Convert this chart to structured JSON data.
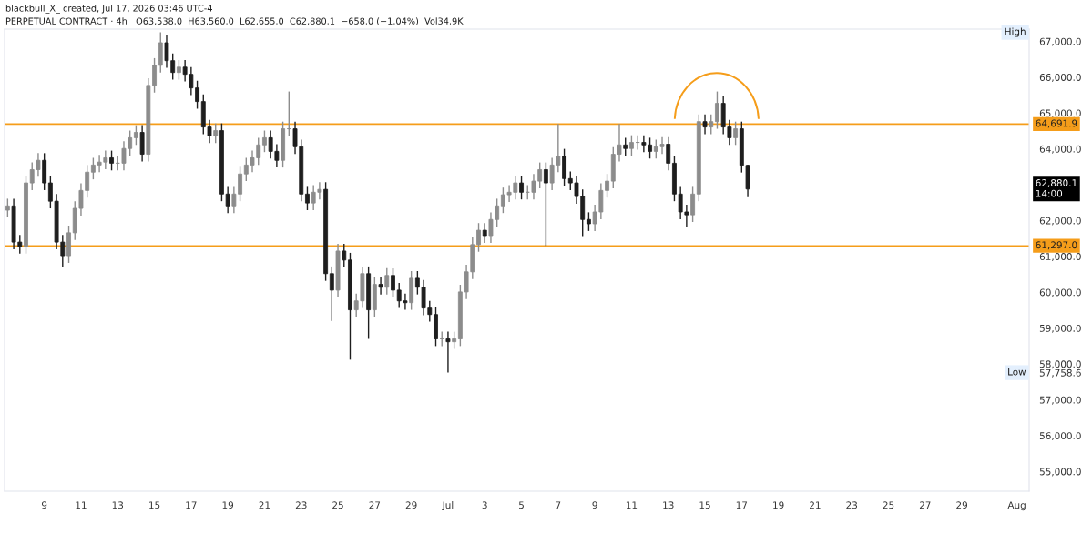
{
  "chart_data": {
    "type": "candlestick",
    "title": "blackbull_X_ created, Jul 17, 2026 03:46 UTC-4",
    "subtitle": "PERPETUAL CONTRACT · 4h   O63,538.0  H63,560.0  L62,655.0  C62,880.1  −658.0 (−1.04%)  Vol34.9K",
    "x": [
      "2026-06-07T00:00",
      "2026-06-07T08:00",
      "2026-06-07T16:00",
      "2026-06-08T00:00",
      "2026-06-08T08:00",
      "2026-06-08T16:00",
      "2026-06-09T00:00",
      "2026-06-09T08:00",
      "2026-06-09T16:00",
      "2026-06-10T00:00",
      "2026-06-10T08:00",
      "2026-06-10T16:00",
      "2026-06-11T00:00",
      "2026-06-11T08:00",
      "2026-06-11T16:00",
      "2026-06-12T00:00",
      "2026-06-12T08:00",
      "2026-06-12T16:00",
      "2026-06-13T00:00",
      "2026-06-13T08:00",
      "2026-06-13T16:00",
      "2026-06-14T00:00",
      "2026-06-14T08:00",
      "2026-06-14T16:00",
      "2026-06-15T00:00",
      "2026-06-15T08:00",
      "2026-06-15T16:00",
      "2026-06-16T00:00",
      "2026-06-16T08:00",
      "2026-06-16T16:00",
      "2026-06-17T00:00",
      "2026-06-17T08:00",
      "2026-06-17T16:00",
      "2026-06-18T00:00",
      "2026-06-18T08:00",
      "2026-06-18T16:00",
      "2026-06-19T00:00",
      "2026-06-19T08:00",
      "2026-06-19T16:00",
      "2026-06-20T00:00",
      "2026-06-20T08:00",
      "2026-06-20T16:00",
      "2026-06-21T00:00",
      "2026-06-21T08:00",
      "2026-06-21T16:00",
      "2026-06-22T00:00",
      "2026-06-22T08:00",
      "2026-06-22T16:00",
      "2026-06-23T00:00",
      "2026-06-23T08:00",
      "2026-06-23T16:00",
      "2026-06-24T00:00",
      "2026-06-24T08:00",
      "2026-06-24T16:00",
      "2026-06-25T00:00",
      "2026-06-25T08:00",
      "2026-06-25T16:00",
      "2026-06-26T00:00",
      "2026-06-26T08:00",
      "2026-06-26T16:00",
      "2026-06-27T00:00",
      "2026-06-27T08:00",
      "2026-06-27T16:00",
      "2026-06-28T00:00",
      "2026-06-28T08:00",
      "2026-06-28T16:00",
      "2026-06-29T00:00",
      "2026-06-29T08:00",
      "2026-06-29T16:00",
      "2026-06-30T00:00",
      "2026-06-30T08:00",
      "2026-06-30T16:00",
      "2026-07-01T00:00",
      "2026-07-01T08:00",
      "2026-07-01T16:00",
      "2026-07-02T00:00",
      "2026-07-02T08:00",
      "2026-07-02T16:00",
      "2026-07-03T00:00",
      "2026-07-03T08:00",
      "2026-07-03T16:00",
      "2026-07-04T00:00",
      "2026-07-04T08:00",
      "2026-07-04T16:00",
      "2026-07-05T00:00",
      "2026-07-05T08:00",
      "2026-07-05T16:00",
      "2026-07-06T00:00",
      "2026-07-06T08:00",
      "2026-07-06T16:00",
      "2026-07-07T00:00",
      "2026-07-07T08:00",
      "2026-07-07T16:00",
      "2026-07-08T00:00",
      "2026-07-08T08:00",
      "2026-07-08T16:00",
      "2026-07-09T00:00",
      "2026-07-09T08:00",
      "2026-07-09T16:00",
      "2026-07-10T00:00",
      "2026-07-10T08:00",
      "2026-07-10T16:00",
      "2026-07-11T00:00",
      "2026-07-11T08:00",
      "2026-07-11T16:00",
      "2026-07-12T00:00",
      "2026-07-12T08:00",
      "2026-07-12T16:00",
      "2026-07-13T00:00",
      "2026-07-13T08:00",
      "2026-07-13T16:00",
      "2026-07-14T00:00",
      "2026-07-14T08:00",
      "2026-07-14T16:00",
      "2026-07-15T00:00",
      "2026-07-15T08:00",
      "2026-07-15T16:00",
      "2026-07-16T00:00",
      "2026-07-16T08:00",
      "2026-07-16T16:00",
      "2026-07-17T00:00",
      "2026-07-17T08:00"
    ],
    "ohlc": [
      [
        62290,
        62610,
        62090,
        62410
      ],
      [
        62410,
        62610,
        61200,
        61400
      ],
      [
        61400,
        61600,
        61080,
        61280
      ],
      [
        61280,
        63250,
        61080,
        63050
      ],
      [
        63050,
        63620,
        62850,
        63420
      ],
      [
        63420,
        63880,
        63220,
        63680
      ],
      [
        63680,
        63880,
        62850,
        63050
      ],
      [
        63050,
        63250,
        62340,
        62540
      ],
      [
        62540,
        62740,
        61200,
        61400
      ],
      [
        61400,
        61600,
        60700,
        61020
      ],
      [
        61020,
        61860,
        60820,
        61660
      ],
      [
        61660,
        62540,
        61460,
        62340
      ],
      [
        62340,
        63040,
        62140,
        62840
      ],
      [
        62840,
        63550,
        62640,
        63350
      ],
      [
        63350,
        63750,
        63150,
        63550
      ],
      [
        63550,
        63830,
        63350,
        63630
      ],
      [
        63630,
        63950,
        63430,
        63750
      ],
      [
        63750,
        63950,
        63400,
        63600
      ],
      [
        63600,
        63800,
        63400,
        63600
      ],
      [
        63600,
        64210,
        63400,
        64010
      ],
      [
        64010,
        64510,
        63810,
        64310
      ],
      [
        64310,
        64660,
        64110,
        64460
      ],
      [
        64460,
        64660,
        63650,
        63850
      ],
      [
        63850,
        65970,
        63650,
        65770
      ],
      [
        65770,
        66530,
        65570,
        66330
      ],
      [
        66330,
        67250,
        66130,
        66960
      ],
      [
        66960,
        67160,
        66260,
        66460
      ],
      [
        66460,
        66660,
        65930,
        66130
      ],
      [
        66130,
        66480,
        65930,
        66280
      ],
      [
        66280,
        66480,
        65880,
        66080
      ],
      [
        66080,
        66280,
        65500,
        65700
      ],
      [
        65700,
        65900,
        65120,
        65320
      ],
      [
        65320,
        65520,
        64410,
        64610
      ],
      [
        64610,
        64810,
        64160,
        64360
      ],
      [
        64360,
        64710,
        64160,
        64510
      ],
      [
        64510,
        64710,
        62540,
        62740
      ],
      [
        62740,
        62940,
        62210,
        62410
      ],
      [
        62410,
        62940,
        62210,
        62740
      ],
      [
        62740,
        63500,
        62540,
        63300
      ],
      [
        63300,
        63750,
        63100,
        63550
      ],
      [
        63550,
        63950,
        63350,
        63750
      ],
      [
        63750,
        64310,
        63550,
        64110
      ],
      [
        64110,
        64510,
        63910,
        64310
      ],
      [
        64310,
        64510,
        63730,
        63930
      ],
      [
        63930,
        64130,
        63480,
        63680
      ],
      [
        63680,
        64760,
        63480,
        64560
      ],
      [
        64560,
        65600,
        64360,
        64560
      ],
      [
        64560,
        64760,
        63860,
        64060
      ],
      [
        64060,
        64260,
        62540,
        62740
      ],
      [
        62740,
        62940,
        62290,
        62490
      ],
      [
        62490,
        62990,
        62290,
        62790
      ],
      [
        62790,
        63070,
        62590,
        62870
      ],
      [
        62870,
        63070,
        60320,
        60520
      ],
      [
        60520,
        60720,
        59200,
        60060
      ],
      [
        60060,
        61350,
        59860,
        61150
      ],
      [
        61150,
        61350,
        60700,
        60900
      ],
      [
        60900,
        61100,
        58120,
        59510
      ],
      [
        59510,
        59960,
        59310,
        59760
      ],
      [
        59760,
        60720,
        59560,
        60520
      ],
      [
        60520,
        60720,
        58700,
        59510
      ],
      [
        59510,
        60420,
        59310,
        60220
      ],
      [
        60220,
        60420,
        59940,
        60140
      ],
      [
        60140,
        60670,
        59940,
        60470
      ],
      [
        60470,
        60670,
        59860,
        60060
      ],
      [
        60060,
        60260,
        59560,
        59760
      ],
      [
        59760,
        59960,
        59510,
        59710
      ],
      [
        59710,
        60590,
        59510,
        60390
      ],
      [
        60390,
        60590,
        59940,
        60140
      ],
      [
        60140,
        60340,
        59360,
        59560
      ],
      [
        59560,
        59760,
        59180,
        59380
      ],
      [
        59380,
        59580,
        58500,
        58700
      ],
      [
        58700,
        58900,
        58500,
        58700
      ],
      [
        58700,
        58900,
        57758.6,
        58620
      ],
      [
        58620,
        58900,
        58420,
        58700
      ],
      [
        58700,
        60210,
        58500,
        60010
      ],
      [
        60010,
        60770,
        59810,
        60570
      ],
      [
        60570,
        61530,
        60370,
        61330
      ],
      [
        61330,
        61930,
        61130,
        61730
      ],
      [
        61730,
        61930,
        61380,
        61580
      ],
      [
        61580,
        62230,
        61380,
        62030
      ],
      [
        62030,
        62610,
        61830,
        62410
      ],
      [
        62410,
        62920,
        62210,
        62720
      ],
      [
        62720,
        62990,
        62520,
        62790
      ],
      [
        62790,
        63250,
        62590,
        63050
      ],
      [
        63050,
        63250,
        62590,
        62790
      ],
      [
        62790,
        62990,
        62590,
        62790
      ],
      [
        62790,
        63300,
        62590,
        63100
      ],
      [
        63100,
        63620,
        62900,
        63420
      ],
      [
        63420,
        63620,
        61297.0,
        63050
      ],
      [
        63050,
        63750,
        62850,
        63550
      ],
      [
        63550,
        64691.9,
        63350,
        63800
      ],
      [
        63800,
        64000,
        62970,
        63170
      ],
      [
        63170,
        63370,
        62850,
        63050
      ],
      [
        63050,
        63250,
        62470,
        62670
      ],
      [
        62670,
        62870,
        61570,
        62030
      ],
      [
        62030,
        62230,
        61710,
        61910
      ],
      [
        61910,
        62440,
        61710,
        62240
      ],
      [
        62240,
        63040,
        62040,
        62840
      ],
      [
        62840,
        63300,
        62640,
        63100
      ],
      [
        63100,
        64050,
        62900,
        63850
      ],
      [
        63850,
        64691.9,
        63650,
        64110
      ],
      [
        64110,
        64310,
        63810,
        64010
      ],
      [
        64010,
        64380,
        63810,
        64180
      ],
      [
        64180,
        64380,
        63980,
        64180
      ],
      [
        64180,
        64380,
        63910,
        64110
      ],
      [
        64110,
        64310,
        63730,
        63930
      ],
      [
        63930,
        64260,
        63730,
        64060
      ],
      [
        64060,
        64330,
        63860,
        64130
      ],
      [
        64130,
        64330,
        63400,
        63600
      ],
      [
        63600,
        63800,
        62540,
        62740
      ],
      [
        62740,
        62940,
        62040,
        62240
      ],
      [
        62240,
        62440,
        61830,
        62160
      ],
      [
        62160,
        62940,
        61960,
        62740
      ],
      [
        62740,
        64960,
        62540,
        64760
      ],
      [
        64760,
        64960,
        64410,
        64610
      ],
      [
        64610,
        64960,
        64410,
        64760
      ],
      [
        64760,
        65600,
        64560,
        65270
      ],
      [
        65270,
        65470,
        64410,
        64610
      ],
      [
        64610,
        64810,
        64110,
        64310
      ],
      [
        64310,
        64760,
        64110,
        64560
      ],
      [
        64560,
        64760,
        63340,
        63540
      ],
      [
        63540,
        63560,
        62655,
        62880.1
      ]
    ],
    "colors": [
      "#8c8c8c",
      "#1e1e1e",
      "#1e1e1e",
      "#8c8c8c",
      "#8c8c8c",
      "#8c8c8c",
      "#1e1e1e",
      "#1e1e1e",
      "#1e1e1e",
      "#1e1e1e",
      "#8c8c8c",
      "#8c8c8c",
      "#8c8c8c",
      "#8c8c8c",
      "#8c8c8c",
      "#8c8c8c",
      "#8c8c8c",
      "#1e1e1e",
      "#8c8c8c",
      "#8c8c8c",
      "#8c8c8c",
      "#8c8c8c",
      "#1e1e1e",
      "#8c8c8c",
      "#8c8c8c",
      "#8c8c8c",
      "#1e1e1e",
      "#1e1e1e",
      "#8c8c8c",
      "#1e1e1e",
      "#1e1e1e",
      "#1e1e1e",
      "#1e1e1e",
      "#1e1e1e",
      "#8c8c8c",
      "#1e1e1e",
      "#1e1e1e",
      "#8c8c8c",
      "#8c8c8c",
      "#8c8c8c",
      "#8c8c8c",
      "#8c8c8c",
      "#8c8c8c",
      "#1e1e1e",
      "#1e1e1e",
      "#8c8c8c",
      "#8c8c8c",
      "#1e1e1e",
      "#1e1e1e",
      "#1e1e1e",
      "#8c8c8c",
      "#8c8c8c",
      "#1e1e1e",
      "#1e1e1e",
      "#8c8c8c",
      "#1e1e1e",
      "#1e1e1e",
      "#8c8c8c",
      "#8c8c8c",
      "#1e1e1e",
      "#8c8c8c",
      "#1e1e1e",
      "#8c8c8c",
      "#1e1e1e",
      "#1e1e1e",
      "#1e1e1e",
      "#8c8c8c",
      "#1e1e1e",
      "#1e1e1e",
      "#1e1e1e",
      "#1e1e1e",
      "#8c8c8c",
      "#1e1e1e",
      "#8c8c8c",
      "#8c8c8c",
      "#8c8c8c",
      "#8c8c8c",
      "#8c8c8c",
      "#1e1e1e",
      "#8c8c8c",
      "#8c8c8c",
      "#8c8c8c",
      "#8c8c8c",
      "#8c8c8c",
      "#1e1e1e",
      "#8c8c8c",
      "#8c8c8c",
      "#8c8c8c",
      "#1e1e1e",
      "#8c8c8c",
      "#8c8c8c",
      "#1e1e1e",
      "#1e1e1e",
      "#1e1e1e",
      "#1e1e1e",
      "#1e1e1e",
      "#8c8c8c",
      "#8c8c8c",
      "#8c8c8c",
      "#8c8c8c",
      "#8c8c8c",
      "#1e1e1e",
      "#8c8c8c",
      "#8c8c8c",
      "#1e1e1e",
      "#1e1e1e",
      "#8c8c8c",
      "#8c8c8c",
      "#1e1e1e",
      "#1e1e1e",
      "#1e1e1e",
      "#1e1e1e",
      "#8c8c8c",
      "#8c8c8c",
      "#1e1e1e",
      "#8c8c8c",
      "#8c8c8c",
      "#1e1e1e",
      "#1e1e1e",
      "#8c8c8c",
      "#1e1e1e",
      "#1e1e1e"
    ],
    "xlim": [
      "2026-06-06T20:00",
      "2026-08-01T16:00"
    ],
    "xticks": [
      {
        "value": "2026-06-09",
        "label": "9"
      },
      {
        "value": "2026-06-11",
        "label": "11"
      },
      {
        "value": "2026-06-13",
        "label": "13"
      },
      {
        "value": "2026-06-15",
        "label": "15"
      },
      {
        "value": "2026-06-17",
        "label": "17"
      },
      {
        "value": "2026-06-19",
        "label": "19"
      },
      {
        "value": "2026-06-21",
        "label": "21"
      },
      {
        "value": "2026-06-23",
        "label": "23"
      },
      {
        "value": "2026-06-25",
        "label": "25"
      },
      {
        "value": "2026-06-27",
        "label": "27"
      },
      {
        "value": "2026-06-29",
        "label": "29"
      },
      {
        "value": "2026-07-01",
        "label": "Jul"
      },
      {
        "value": "2026-07-03",
        "label": "3"
      },
      {
        "value": "2026-07-05",
        "label": "5"
      },
      {
        "value": "2026-07-07",
        "label": "7"
      },
      {
        "value": "2026-07-09",
        "label": "9"
      },
      {
        "value": "2026-07-11",
        "label": "11"
      },
      {
        "value": "2026-07-13",
        "label": "13"
      },
      {
        "value": "2026-07-15",
        "label": "15"
      },
      {
        "value": "2026-07-17",
        "label": "17"
      },
      {
        "value": "2026-07-19",
        "label": "19"
      },
      {
        "value": "2026-07-21",
        "label": "21"
      },
      {
        "value": "2026-07-23",
        "label": "23"
      },
      {
        "value": "2026-07-25",
        "label": "25"
      },
      {
        "value": "2026-07-27",
        "label": "27"
      },
      {
        "value": "2026-07-29",
        "label": "29"
      },
      {
        "value": "2026-08-01",
        "label": "Aug"
      }
    ],
    "ylim": [
      54450,
      67340
    ],
    "yticks": [
      {
        "value": 55000,
        "label": "55,000.0"
      },
      {
        "value": 56000,
        "label": "56,000.0"
      },
      {
        "value": 57000,
        "label": "57,000.0"
      },
      {
        "value": 57758.6,
        "label": "57,758.6"
      },
      {
        "value": 58000,
        "label": "58,000.0"
      },
      {
        "value": 59000,
        "label": "59,000.0"
      },
      {
        "value": 60000,
        "label": "60,000.0"
      },
      {
        "value": 61000,
        "label": "61,000.0"
      },
      {
        "value": 62000,
        "label": "62,000.0"
      },
      {
        "value": 64000,
        "label": "64,000.0"
      },
      {
        "value": 65000,
        "label": "65,000.0"
      },
      {
        "value": 66000,
        "label": "66,000.0"
      },
      {
        "value": 67000,
        "label": "67,000.0"
      }
    ],
    "ref_lines": [
      {
        "axis": "y",
        "value": 64691.9,
        "label": "64,691.9",
        "color": "#f59d1a"
      },
      {
        "axis": "y",
        "value": 61297.0,
        "label": "61,297.0",
        "color": "#f59d1a"
      }
    ],
    "annotations": [
      {
        "text": "High",
        "y": 67250
      },
      {
        "text": "Low",
        "y": 57758.6
      },
      "62,880.1\n14:00"
    ]
  }
}
